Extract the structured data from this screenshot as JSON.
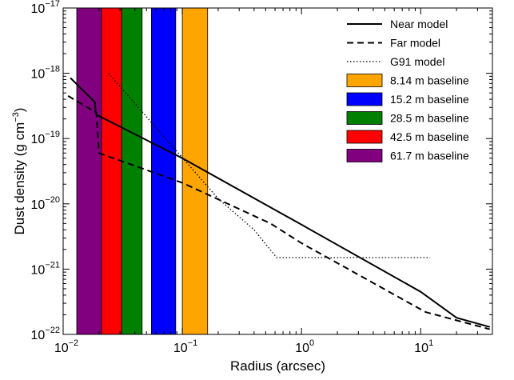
{
  "chart_data": {
    "type": "line",
    "title": "",
    "xlabel": "Radius (arcsec)",
    "ylabel_main": "Dust density (g cm",
    "ylabel_exp": "−3",
    "ylabel_close": ")",
    "x_scale": "log",
    "y_scale": "log",
    "xlim": [
      0.01,
      40
    ],
    "ylim": [
      1e-22,
      1e-17
    ],
    "grid": false,
    "legend_position": "top-right",
    "x_ticks": [
      {
        "value": 0.01,
        "base": "10",
        "exp": "−2"
      },
      {
        "value": 0.1,
        "base": "10",
        "exp": "−1"
      },
      {
        "value": 1,
        "base": "10",
        "exp": "0"
      },
      {
        "value": 10,
        "base": "10",
        "exp": "1"
      }
    ],
    "y_ticks": [
      {
        "value": 1e-22,
        "base": "10",
        "exp": "−22"
      },
      {
        "value": 1e-21,
        "base": "10",
        "exp": "−21"
      },
      {
        "value": 1e-20,
        "base": "10",
        "exp": "−20"
      },
      {
        "value": 1e-19,
        "base": "10",
        "exp": "−19"
      },
      {
        "value": 1e-18,
        "base": "10",
        "exp": "−18"
      },
      {
        "value": 1e-17,
        "base": "10",
        "exp": "−17"
      }
    ],
    "bands": [
      {
        "name": "61.7 m baseline",
        "xmin": 0.013,
        "xmax": 0.021,
        "color": "#800080"
      },
      {
        "name": "42.5 m baseline",
        "xmin": 0.021,
        "xmax": 0.031,
        "color": "#ff0000"
      },
      {
        "name": "28.5 m baseline",
        "xmin": 0.031,
        "xmax": 0.046,
        "color": "#008000"
      },
      {
        "name": "15.2 m baseline",
        "xmin": 0.055,
        "xmax": 0.088,
        "color": "#0000ff"
      },
      {
        "name": "8.14 m baseline",
        "xmin": 0.1,
        "xmax": 0.163,
        "color": "#ffa500"
      }
    ],
    "series": [
      {
        "name": "Near model",
        "style": "solid",
        "x": [
          0.0115,
          0.0185,
          0.0187,
          0.0192,
          0.1,
          1,
          10,
          20,
          38
        ],
        "y": [
          8.5e-19,
          3.6e-19,
          2.5e-19,
          2.3e-19,
          5e-20,
          4.8e-21,
          4.5e-22,
          1.8e-22,
          1.3e-22
        ]
      },
      {
        "name": "Far model",
        "style": "dashed",
        "x": [
          0.011,
          0.019,
          0.0193,
          0.02,
          0.1,
          0.55,
          1,
          11,
          38
        ],
        "y": [
          4.5e-19,
          2.5e-19,
          1.6e-19,
          6e-20,
          2.1e-20,
          5e-21,
          2.5e-21,
          2.2e-22,
          1.2e-22
        ]
      },
      {
        "name": "G91 model",
        "style": "dotted",
        "x": [
          0.024,
          0.2,
          0.4,
          0.62,
          12
        ],
        "y": [
          1e-18,
          1.2e-20,
          4e-21,
          1.5e-21,
          1.5e-21
        ]
      }
    ],
    "legend_order": [
      "Near model",
      "Far model",
      "G91 model",
      "8.14 m baseline",
      "15.2 m baseline",
      "28.5 m baseline",
      "42.5 m baseline",
      "61.7 m baseline"
    ]
  }
}
